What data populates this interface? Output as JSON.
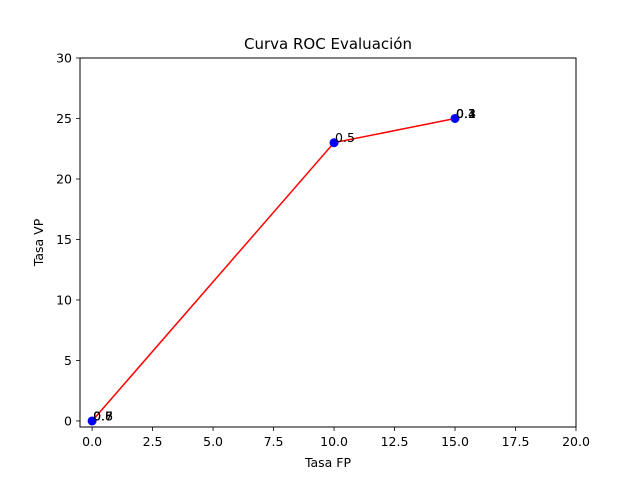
{
  "chart_data": {
    "type": "line",
    "title": "Curva ROC Evaluación",
    "xlabel": "Tasa FP",
    "ylabel": "Tasa VP",
    "xlim": [
      -0.5,
      20
    ],
    "ylim": [
      -0.5,
      30
    ],
    "xticks": [
      0.0,
      2.5,
      5.0,
      7.5,
      10.0,
      12.5,
      15.0,
      17.5,
      20.0
    ],
    "xtick_labels": [
      "0.0",
      "2.5",
      "5.0",
      "7.5",
      "10.0",
      "12.5",
      "15.0",
      "17.5",
      "20.0"
    ],
    "yticks": [
      0,
      5,
      10,
      15,
      20,
      25,
      30
    ],
    "ytick_labels": [
      "0",
      "5",
      "10",
      "15",
      "20",
      "25",
      "30"
    ],
    "grid": false,
    "line_color": "#ff0000",
    "marker_color": "#0000ff",
    "series": [
      {
        "x": [
          0,
          10,
          15
        ],
        "y": [
          0,
          23,
          25
        ]
      }
    ],
    "point_labels": [
      {
        "x": 0,
        "y": 0,
        "text": "0.6"
      },
      {
        "x": 0,
        "y": 0,
        "text": "0.7"
      },
      {
        "x": 0,
        "y": 0,
        "text": "0.8"
      },
      {
        "x": 10,
        "y": 23,
        "text": "0.5"
      },
      {
        "x": 15,
        "y": 25,
        "text": "0.1"
      },
      {
        "x": 15,
        "y": 25,
        "text": "0.2"
      },
      {
        "x": 15,
        "y": 25,
        "text": "0.3"
      },
      {
        "x": 15,
        "y": 25,
        "text": "0.4"
      }
    ]
  }
}
